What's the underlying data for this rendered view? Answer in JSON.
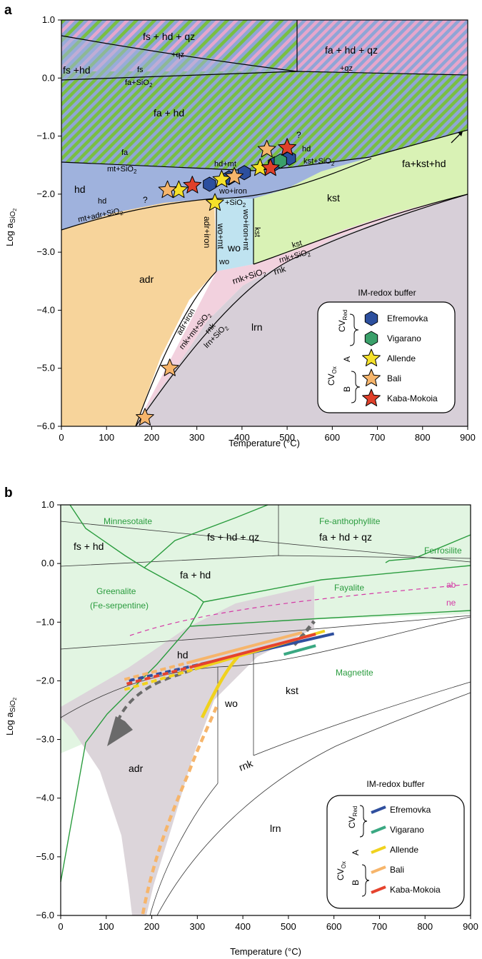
{
  "chart_data": [
    {
      "panel": "a",
      "type": "area",
      "xlabel": "Temperature (°C)",
      "ylabel": "Log a",
      "ylabel_sub": "SiO",
      "ylabel_sub2": "2",
      "xlim": [
        0,
        900
      ],
      "ylim": [
        -6.0,
        1.0
      ],
      "xticks": [
        "0",
        "100",
        "200",
        "300",
        "400",
        "500",
        "600",
        "700",
        "800",
        "900"
      ],
      "yticks": [
        "1.0",
        "0.0",
        "−1.0",
        "−2.0",
        "−3.0",
        "−4.0",
        "−5.0",
        "−6.0"
      ],
      "fields": {
        "fs_hd_qz": "fs + hd + qz",
        "fa_hd_qz": "fa + hd + qz",
        "fs_hd": "fs +hd",
        "fa_hd": "fa + hd",
        "hd": "hd",
        "adr": "adr",
        "wo": "wo",
        "kst": "kst",
        "rnk": "rnk",
        "lrn": "lrn",
        "fa_kst_hd": "fa+kst+hd"
      },
      "reactions": {
        "qz_left": "+qz",
        "qz_right": "+qz",
        "fs": "fs",
        "fa_sio2": "fa+SiO",
        "fa": "fa",
        "mt_sio2": "mt+SiO",
        "hd_left": "hd",
        "mt_adr_sio2": "mt+adr+SiO",
        "q_left": "?",
        "q_top": "?",
        "hd_mt": "hd+mt",
        "wo_iron": "wo+iron",
        "plus_sio2": "+SiO",
        "adr_iron_v": "adr+iron",
        "wo_mt_v": "wo+mt",
        "wo_iron_mt_v": "wo+iron+mt",
        "kst_v": "kst",
        "hd_right": "hd",
        "kst_sio2": "kst+SiO",
        "kst_small": "kst",
        "rnk_sio2": "rnk+SiO",
        "rnk_sio2_b": "rnk+SiO",
        "rnk_word": "rnk",
        "wo_small": "wo",
        "adr_iron_diag": "adr+iron",
        "rnk_mt_sio2": "rnk+mt+SiO",
        "rnk_small": "rnk",
        "lrn_sio2": "lrn+SiO"
      },
      "series": [
        {
          "name": "Efremovka",
          "marker": "hexagon",
          "color": "#2c4f9e",
          "x": [
            328,
            371,
            405,
            472,
            505
          ],
          "y": [
            -1.83,
            -1.72,
            -1.63,
            -1.48,
            -1.38
          ]
        },
        {
          "name": "Vigarano",
          "marker": "hexagon",
          "color": "#3aa06a",
          "x": [
            485
          ],
          "y": [
            -1.43
          ]
        },
        {
          "name": "Allende",
          "marker": "star",
          "color": "#f5e12a",
          "x": [
            260,
            355,
            340,
            440
          ],
          "y": [
            -1.93,
            -1.75,
            -2.15,
            -1.55
          ]
        },
        {
          "name": "Bali",
          "marker": "star",
          "color": "#f6b56b",
          "x": [
            235,
            383,
            455,
            240,
            185
          ],
          "y": [
            -1.93,
            -1.7,
            -1.23,
            -5.0,
            -5.85
          ]
        },
        {
          "name": "Kaba-Mokoia",
          "marker": "star",
          "color": "#e0402a",
          "x": [
            290,
            463,
            500
          ],
          "y": [
            -1.85,
            -1.55,
            -1.2
          ]
        }
      ],
      "legend": {
        "title": "IM-redox buffer",
        "position": "bottom-right",
        "group_red": "CV",
        "group_red_sub": "Red",
        "group_ox": "CV",
        "group_ox_sub": "Ox",
        "sub_a": "A",
        "sub_b": "B"
      },
      "colors": {
        "hd": "#9fb2dd",
        "adr": "#f7d49b",
        "wo": "#bfe3f0",
        "kst": "#d9f2b5",
        "rnk": "#f2d1de",
        "lrn": "#d7cfd8",
        "stripe_green": "#7fc245",
        "stripe_pink": "#e8a4c9"
      }
    },
    {
      "panel": "b",
      "type": "line",
      "xlabel": "Temperature (°C)",
      "ylabel": "Log a",
      "ylabel_sub": "SiO",
      "ylabel_sub2": "2",
      "xlim": [
        0,
        900
      ],
      "ylim": [
        -6.0,
        1.0
      ],
      "xticks": [
        "0",
        "100",
        "200",
        "300",
        "400",
        "500",
        "600",
        "700",
        "800",
        "900"
      ],
      "yticks": [
        "1.0",
        "0.0",
        "−1.0",
        "−2.0",
        "−3.0",
        "−4.0",
        "−5.0",
        "−6.0"
      ],
      "mineral_labels": {
        "minnesotaite": "Minnesotaite",
        "fe_anthophyllite": "Fe-anthophyllite",
        "ferrosilite": "Ferrosilite",
        "fayalite": "Fayalite",
        "greenalite": "Greenalite",
        "greenalite2": "(Fe-serpentine)",
        "magnetite": "Magnetite"
      },
      "fields": {
        "fs_hd_qz": "fs + hd + qz",
        "fa_hd_qz": "fa + hd + qz",
        "fs_hd": "fs + hd",
        "fa_hd": "fa + hd",
        "hd": "hd",
        "kst": "kst",
        "wo": "wo",
        "adr": "adr",
        "rnk": "rnk",
        "lrn": "lrn",
        "ab": "ab",
        "ne": "ne"
      },
      "series": [
        {
          "name": "Efremovka",
          "color": "#2f4f9e",
          "x": [
            150,
            600
          ],
          "y": [
            -2.05,
            -1.25
          ]
        },
        {
          "name": "Vigarano",
          "color": "#3aa882",
          "x": [
            490,
            560
          ],
          "y": [
            -1.55,
            -1.4
          ]
        },
        {
          "name": "Allende",
          "color": "#f0d21e",
          "x": [
            140,
            580
          ],
          "y": [
            -2.15,
            -1.15
          ]
        },
        {
          "name": "Bali",
          "color": "#f6b56b",
          "x": [
            140,
            530
          ],
          "y": [
            -1.95,
            -1.15
          ]
        },
        {
          "name": "Kaba-Mokoia",
          "color": "#e5432e",
          "x": [
            145,
            560
          ],
          "y": [
            -2.0,
            -1.15
          ]
        }
      ],
      "legend": {
        "title": "IM-redox buffer",
        "position": "bottom-right",
        "group_red": "CV",
        "group_red_sub": "Red",
        "group_ox": "CV",
        "group_ox_sub": "Ox",
        "sub_a": "A",
        "sub_b": "B"
      },
      "colors": {
        "mineral_field": "#e2f5e2",
        "mineral_line": "#2a9c3e",
        "path_band": "#dcd5da",
        "ab_ne": "#d43aa6"
      }
    }
  ]
}
